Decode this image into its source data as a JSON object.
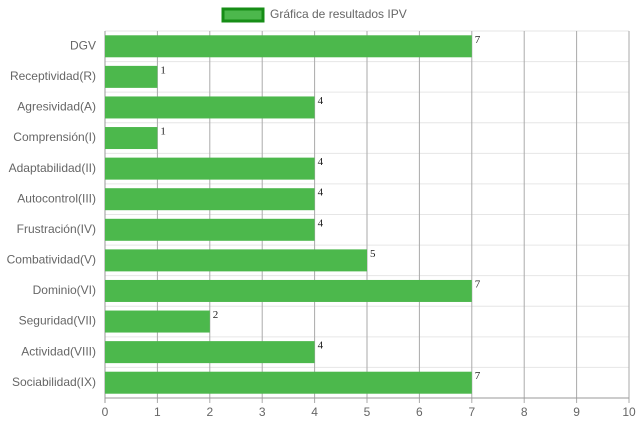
{
  "chart_data": {
    "type": "bar",
    "orientation": "horizontal",
    "categories": [
      "DGV",
      "Receptividad(R)",
      "Agresividad(A)",
      "Comprensión(I)",
      "Adaptabilidad(II)",
      "Autocontrol(III)",
      "Frustración(IV)",
      "Combatividad(V)",
      "Dominio(VI)",
      "Seguridad(VII)",
      "Actividad(VIII)",
      "Sociabilidad(IX)"
    ],
    "series": [
      {
        "name": "Gráfica de resultados IPV",
        "color": "#4cb84c",
        "border_color": "#168d16",
        "values": [
          7,
          1,
          4,
          1,
          4,
          4,
          4,
          5,
          7,
          2,
          4,
          7
        ]
      }
    ],
    "xlim": [
      0,
      10
    ],
    "xticks": [
      0,
      1,
      2,
      3,
      4,
      5,
      6,
      7,
      8,
      9,
      10
    ],
    "grid": true,
    "legend": "top",
    "data_labels": true
  }
}
